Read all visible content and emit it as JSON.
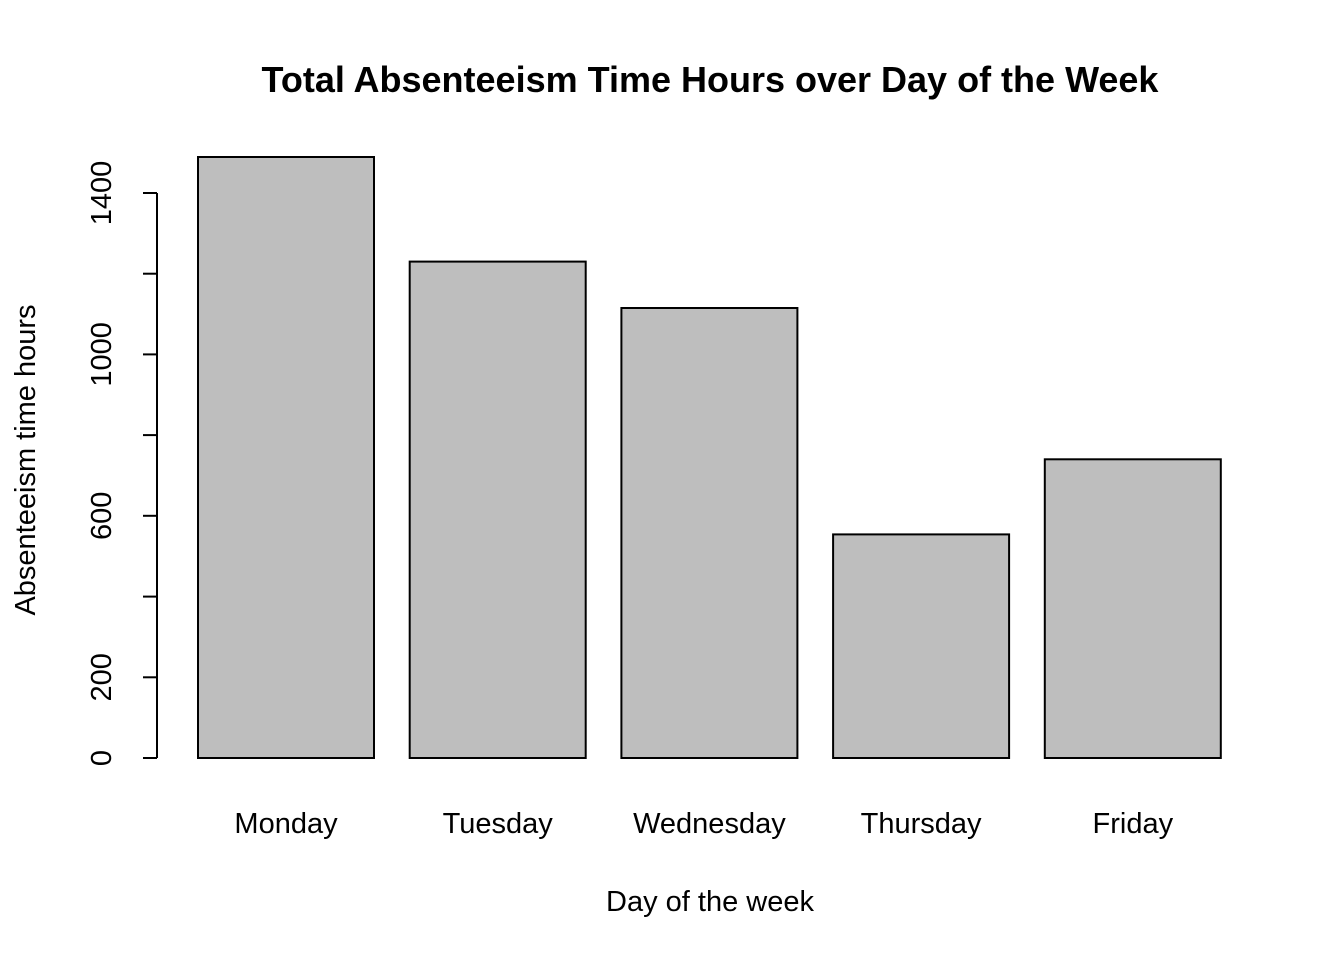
{
  "chart_data": {
    "type": "bar",
    "title": "Total Absenteeism Time Hours over Day of the Week",
    "xlabel": "Day of the week",
    "ylabel": "Absenteeism time hours",
    "categories": [
      "Monday",
      "Tuesday",
      "Wednesday",
      "Thursday",
      "Friday"
    ],
    "values": [
      1489,
      1230,
      1115,
      554,
      740
    ],
    "ylim": [
      0,
      1400
    ],
    "yticks": [
      0,
      200,
      600,
      1000,
      1400
    ],
    "yticks_minor": [
      400,
      800,
      1200
    ],
    "bar_color": "#bebebe",
    "bar_border_color": "#000000",
    "grid": false,
    "legend": "none"
  }
}
